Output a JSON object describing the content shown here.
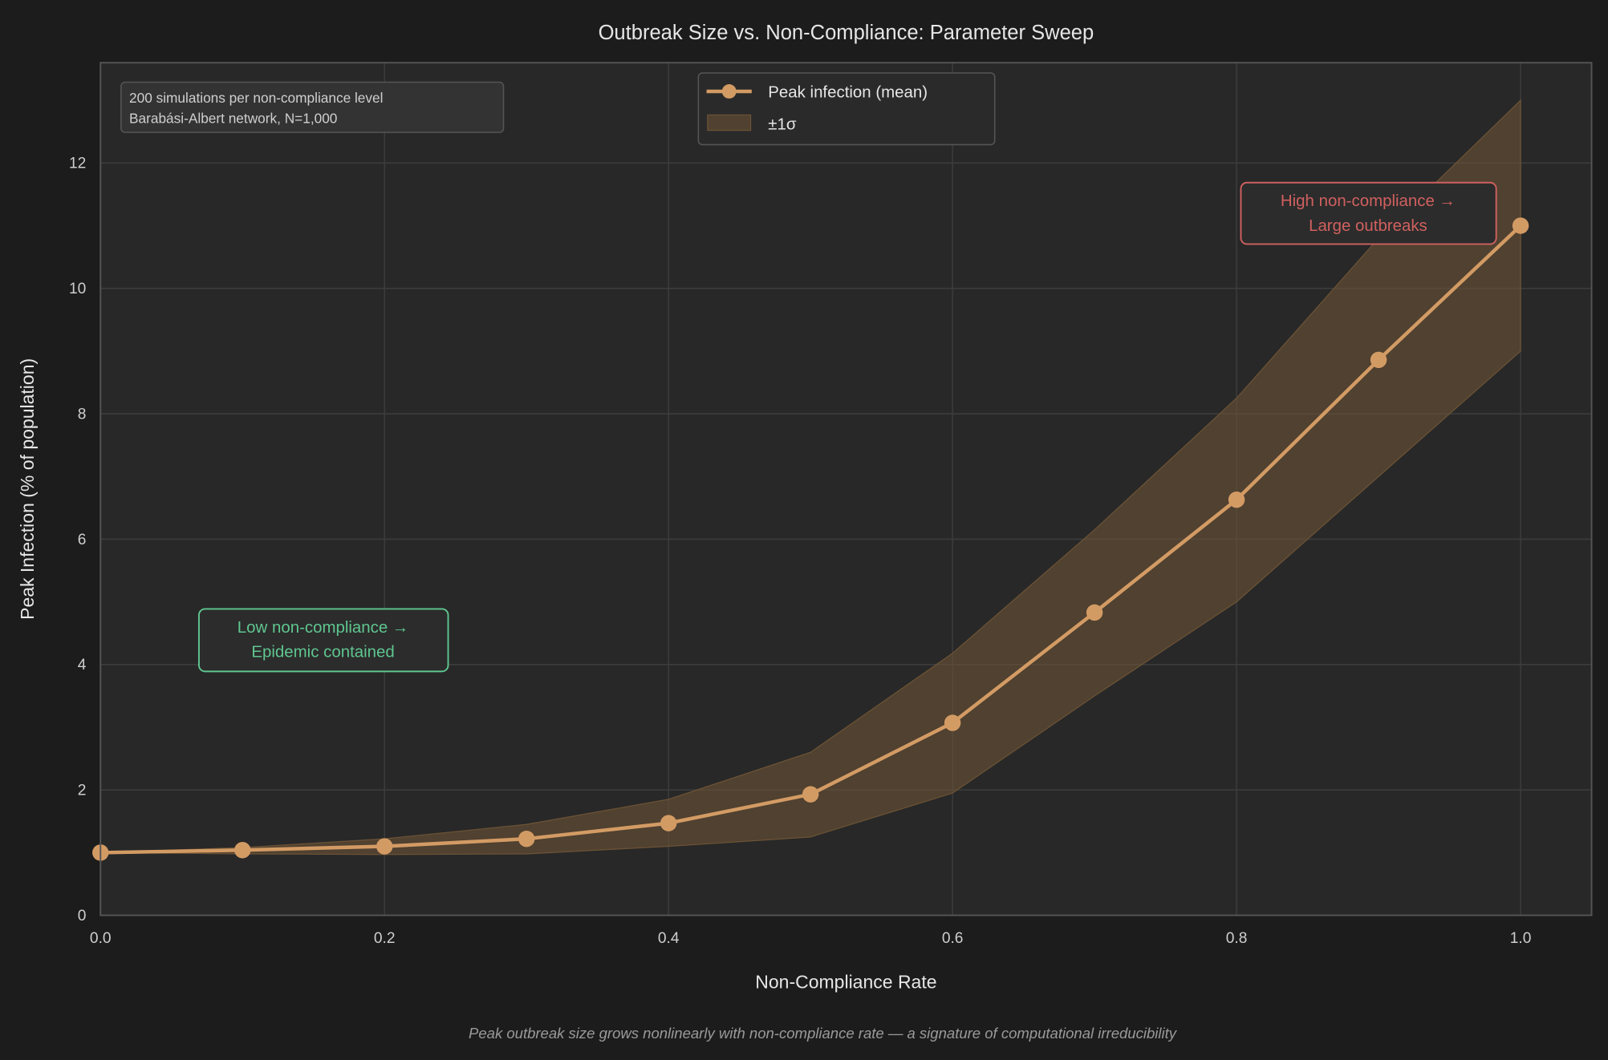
{
  "chart_data": {
    "type": "line",
    "title": "Outbreak Size vs. Non-Compliance: Parameter Sweep",
    "xlabel": "Non-Compliance Rate",
    "ylabel": "Peak Infection (% of population)",
    "xlim": [
      0,
      1.05
    ],
    "ylim": [
      0,
      13.6
    ],
    "xticks": [
      "0.0",
      "0.2",
      "0.4",
      "0.6",
      "0.8",
      "1.0"
    ],
    "yticks": [
      "0",
      "2",
      "4",
      "6",
      "8",
      "10",
      "12"
    ],
    "grid": true,
    "legend_placement": "top-center",
    "x": [
      0.0,
      0.1,
      0.2,
      0.3,
      0.4,
      0.5,
      0.6,
      0.7,
      0.8,
      0.9,
      1.0
    ],
    "series": [
      {
        "name": "Peak infection (mean)",
        "color": "#d39b64",
        "values": [
          1.0,
          1.04,
          1.1,
          1.22,
          1.47,
          1.93,
          3.07,
          4.83,
          6.63,
          8.86,
          11.0
        ]
      },
      {
        "name": "±1σ",
        "type": "band",
        "color": "#6b5235",
        "upper": [
          1.0,
          1.08,
          1.22,
          1.45,
          1.85,
          2.6,
          4.18,
          6.15,
          8.25,
          10.8,
          13.0
        ],
        "lower": [
          1.0,
          0.98,
          0.97,
          0.98,
          1.1,
          1.25,
          1.95,
          3.5,
          5.0,
          7.0,
          9.0
        ]
      }
    ],
    "info_box": [
      "200 simulations per non-compliance level",
      "Barabási-Albert network, N=1,000"
    ],
    "annotations": [
      {
        "lines": [
          "Low non-compliance →",
          "Epidemic contained"
        ],
        "color": "#5fc690"
      },
      {
        "lines": [
          "High non-compliance →",
          "Large outbreaks"
        ],
        "color": "#d0605f"
      }
    ],
    "caption": "Peak outbreak size grows nonlinearly with non-compliance rate — a signature of computational irreducibility"
  }
}
